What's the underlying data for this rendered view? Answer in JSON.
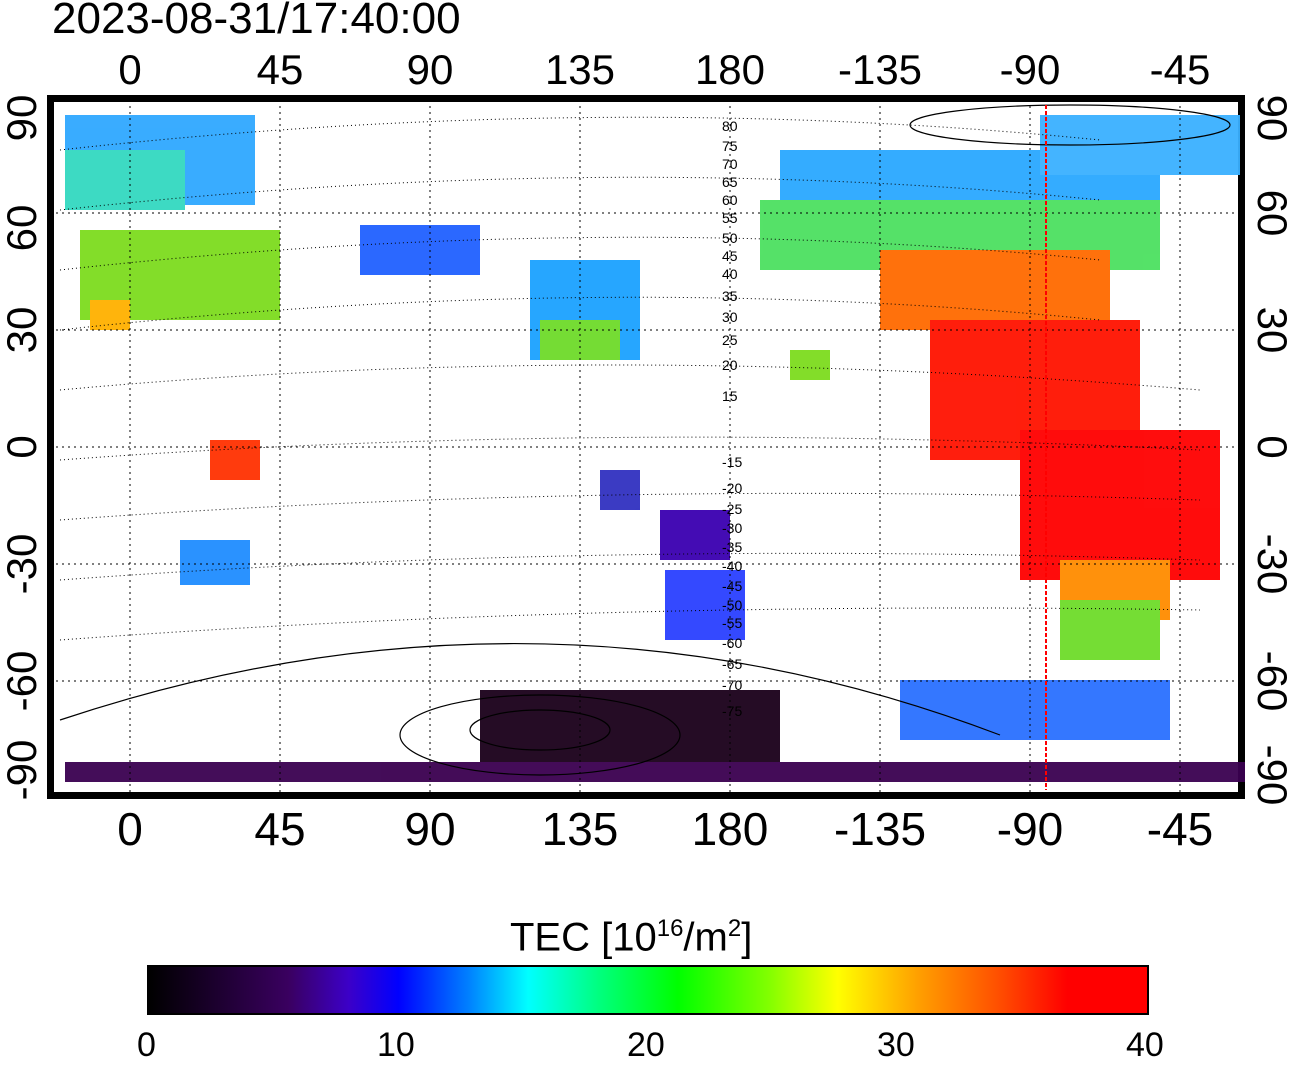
{
  "title": "2023-08-31/17:40:00",
  "map": {
    "top_ticks": [
      "0",
      "45",
      "90",
      "135",
      "180",
      "-135",
      "-90",
      "-45"
    ],
    "bottom_ticks": [
      "0",
      "45",
      "90",
      "135",
      "180",
      "-135",
      "-90",
      "-45"
    ],
    "left_ticks": [
      "90",
      "60",
      "30",
      "0",
      "-30",
      "-60",
      "-90"
    ],
    "right_ticks": [
      "90",
      "60",
      "30",
      "0",
      "-30",
      "-60",
      "-90"
    ],
    "terminator_labels_north": [
      "80",
      "75",
      "70",
      "65",
      "60",
      "55",
      "50",
      "45",
      "40",
      "35",
      "30",
      "25",
      "20",
      "15"
    ],
    "terminator_labels_south": [
      "-15",
      "-20",
      "-25",
      "-30",
      "-35",
      "-40",
      "-45",
      "-50",
      "-55",
      "-60",
      "-65",
      "-70",
      "-75"
    ],
    "subsolar_meridian_color": "#ff0000",
    "grid": true
  },
  "colorbar": {
    "label_prefix": "TEC  [10",
    "label_exp": "16",
    "label_mid": "/m",
    "label_exp2": "2",
    "label_suffix": "]",
    "ticks": [
      "0",
      "10",
      "20",
      "30",
      "40"
    ],
    "min": 0,
    "max": 40,
    "colormap": "rainbow (black-purple-blue-cyan-green-yellow-red)"
  }
}
